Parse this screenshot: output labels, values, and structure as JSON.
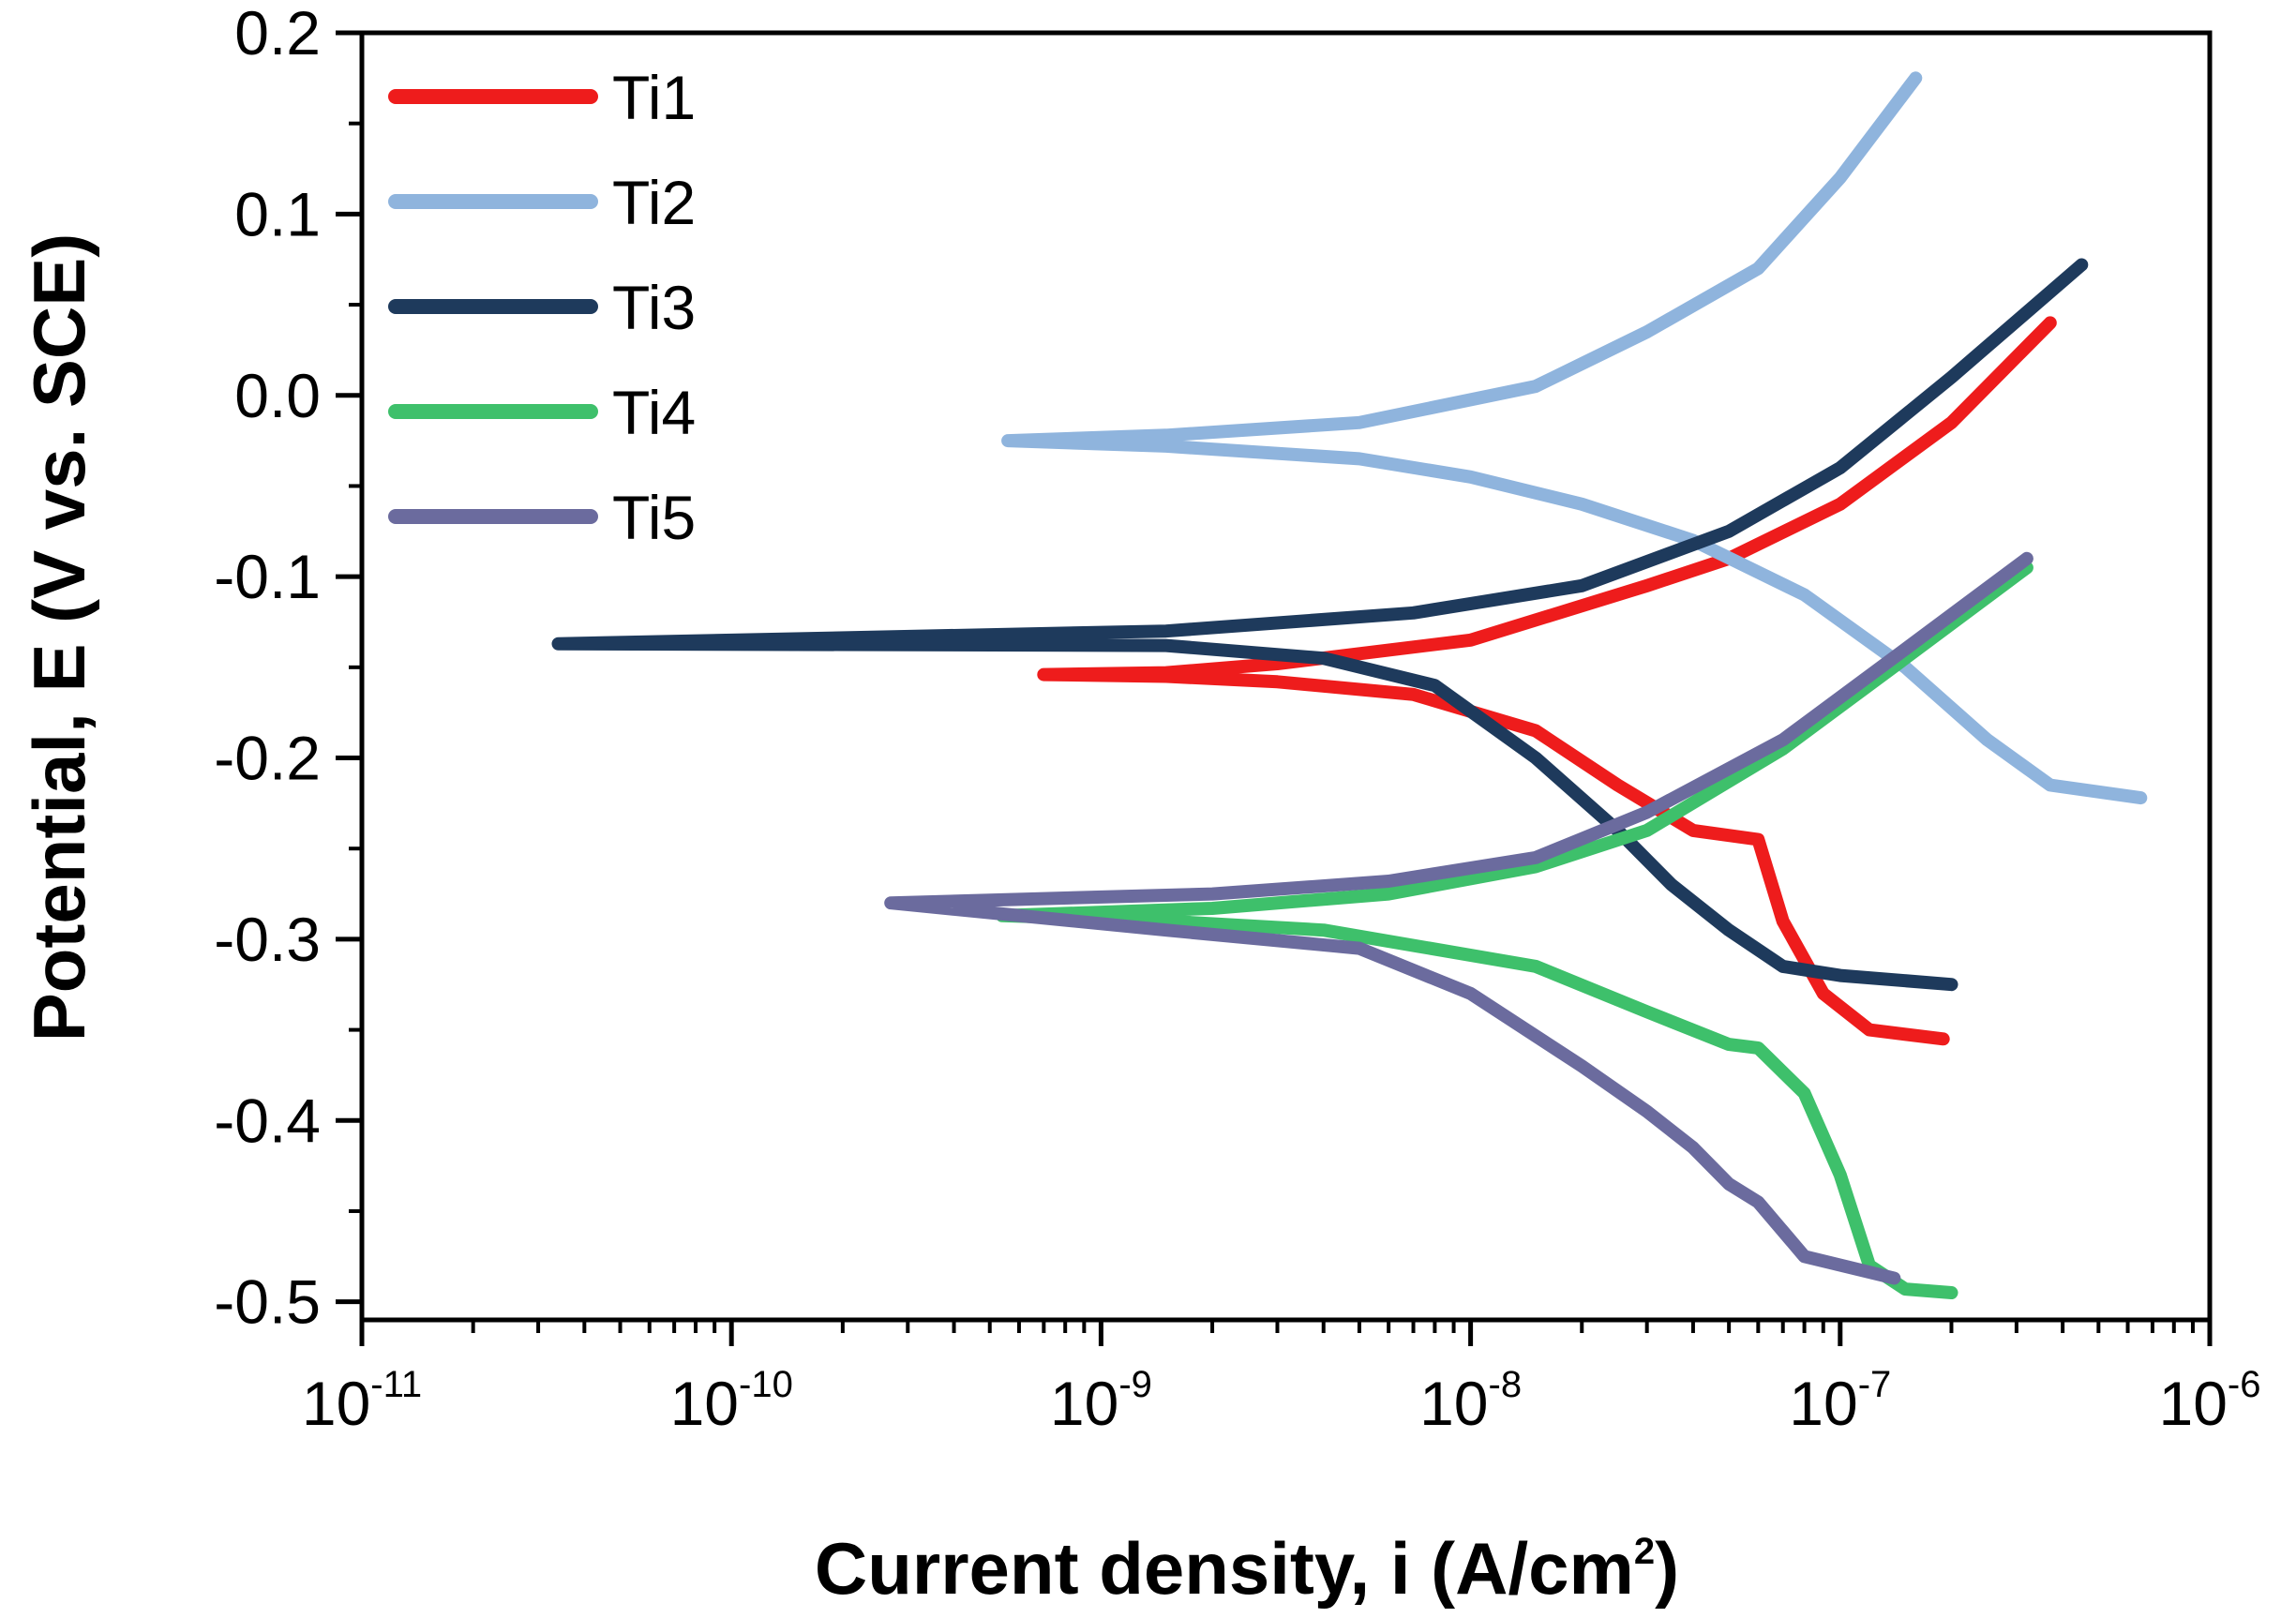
{
  "chart_data": {
    "type": "line",
    "title": "",
    "xlabel": "Current density, i (A/cm",
    "xlabel_sup": "2",
    "xlabel_end": ")",
    "ylabel": "Potential, E (V vs. SCE)",
    "x_scale": "log",
    "xlim": [
      1e-11,
      1e-06
    ],
    "ylim": [
      -0.51,
      0.2
    ],
    "x_ticks": [
      {
        "value": 1e-11,
        "base": "10",
        "exp": "-11"
      },
      {
        "value": 1e-10,
        "base": "10",
        "exp": "-10"
      },
      {
        "value": 1e-09,
        "base": "10",
        "exp": "-9"
      },
      {
        "value": 1e-08,
        "base": "10",
        "exp": "-8"
      },
      {
        "value": 1e-07,
        "base": "10",
        "exp": "-7"
      },
      {
        "value": 1e-06,
        "base": "10",
        "exp": "-6"
      }
    ],
    "y_ticks": [
      {
        "value": 0.2,
        "label": "0.2"
      },
      {
        "value": 0.1,
        "label": "0.1"
      },
      {
        "value": 0.0,
        "label": "0.0"
      },
      {
        "value": -0.1,
        "label": "-0.1"
      },
      {
        "value": -0.2,
        "label": "-0.2"
      },
      {
        "value": -0.3,
        "label": "-0.3"
      },
      {
        "value": -0.4,
        "label": "-0.4"
      },
      {
        "value": -0.5,
        "label": "-0.5"
      }
    ],
    "legend_position": "top-left",
    "series": [
      {
        "name": "Ti1",
        "color": "#ee1c1c",
        "x": [
          3.7e-07,
          2e-07,
          1e-07,
          5e-08,
          3e-08,
          1e-08,
          3e-09,
          1.5e-09,
          7e-10,
          1.5e-09,
          3e-09,
          7e-09,
          1.5e-08,
          2.5e-08,
          4e-08,
          6e-08,
          7e-08,
          9e-08,
          1.2e-07,
          1.9e-07
        ],
        "y": [
          0.04,
          -0.015,
          -0.06,
          -0.09,
          -0.105,
          -0.135,
          -0.148,
          -0.153,
          -0.154,
          -0.155,
          -0.158,
          -0.165,
          -0.185,
          -0.215,
          -0.24,
          -0.245,
          -0.29,
          -0.33,
          -0.35,
          -0.355
        ]
      },
      {
        "name": "Ti2",
        "color": "#8fb4dd",
        "x": [
          1.6e-07,
          1e-07,
          6e-08,
          3e-08,
          1.5e-08,
          5e-09,
          1.5e-09,
          5.6e-10,
          1.5e-09,
          5e-09,
          1e-08,
          2e-08,
          4e-08,
          8e-08,
          1.5e-07,
          2.5e-07,
          3.7e-07,
          6.5e-07
        ],
        "y": [
          0.175,
          0.12,
          0.07,
          0.035,
          0.005,
          -0.015,
          -0.022,
          -0.025,
          -0.028,
          -0.035,
          -0.045,
          -0.06,
          -0.08,
          -0.11,
          -0.15,
          -0.19,
          -0.215,
          -0.222
        ]
      },
      {
        "name": "Ti3",
        "color": "#1e3a5c",
        "x": [
          4.5e-07,
          2e-07,
          1e-07,
          5e-08,
          2e-08,
          7e-09,
          1.5e-09,
          3.4e-11,
          1.5e-09,
          4e-09,
          8e-09,
          1.5e-08,
          2.5e-08,
          3.5e-08,
          5e-08,
          7e-08,
          1e-07,
          2e-07
        ],
        "y": [
          0.072,
          0.01,
          -0.04,
          -0.075,
          -0.105,
          -0.12,
          -0.13,
          -0.137,
          -0.138,
          -0.145,
          -0.16,
          -0.2,
          -0.24,
          -0.27,
          -0.295,
          -0.315,
          -0.32,
          -0.325
        ]
      },
      {
        "name": "Ti4",
        "color": "#3ec06b",
        "x": [
          3.2e-07,
          1.5e-07,
          7e-08,
          3e-08,
          1.5e-08,
          6e-09,
          2e-09,
          5.4e-10,
          1.5e-09,
          4e-09,
          1.5e-08,
          3e-08,
          5e-08,
          6e-08,
          8e-08,
          1e-07,
          1.2e-07,
          1.5e-07,
          2e-07
        ],
        "y": [
          -0.095,
          -0.145,
          -0.195,
          -0.24,
          -0.26,
          -0.275,
          -0.283,
          -0.287,
          -0.29,
          -0.295,
          -0.315,
          -0.34,
          -0.358,
          -0.36,
          -0.385,
          -0.43,
          -0.48,
          -0.493,
          -0.495
        ]
      },
      {
        "name": "Ti5",
        "color": "#6b6b9e",
        "x": [
          3.2e-07,
          1.5e-07,
          7e-08,
          3e-08,
          1.5e-08,
          6e-09,
          2e-09,
          2.7e-10,
          1.5e-09,
          5e-09,
          1e-08,
          2e-08,
          3e-08,
          4e-08,
          5e-08,
          6e-08,
          8e-08,
          1.4e-07
        ],
        "y": [
          -0.09,
          -0.14,
          -0.19,
          -0.23,
          -0.255,
          -0.268,
          -0.275,
          -0.28,
          -0.295,
          -0.305,
          -0.33,
          -0.37,
          -0.395,
          -0.415,
          -0.435,
          -0.445,
          -0.475,
          -0.487
        ]
      }
    ]
  }
}
